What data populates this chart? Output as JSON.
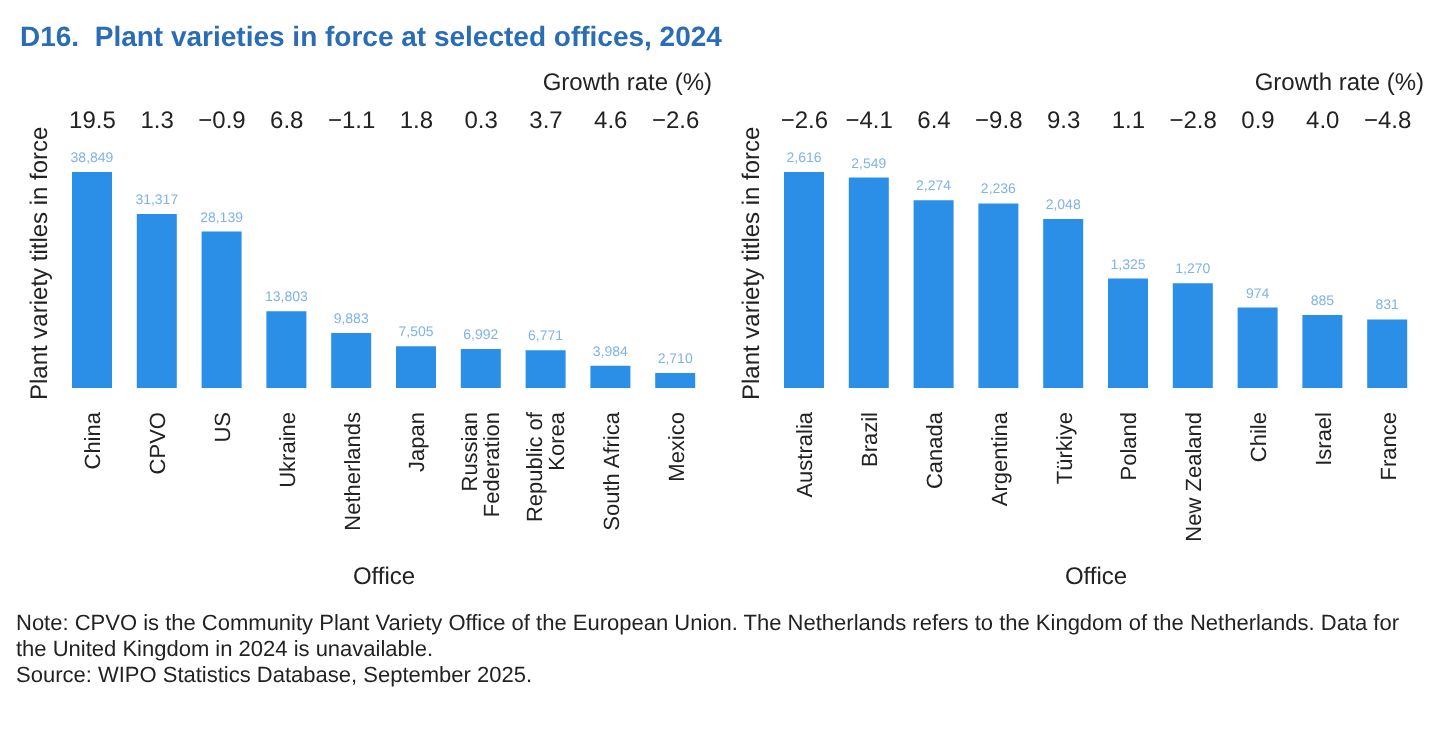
{
  "chart_data": [
    {
      "type": "bar",
      "title": "D16.  Plant varieties in force at selected offices, 2024",
      "xlabel": "Office",
      "ylabel": "Plant variety titles in force",
      "categories": [
        "China",
        "CPVO",
        "US",
        "Ukraine",
        "Netherlands",
        "Japan",
        "Russian Federation",
        "Republic of Korea",
        "South Africa",
        "Mexico"
      ],
      "values": [
        38849,
        31317,
        28139,
        13803,
        9883,
        7505,
        6992,
        6771,
        3984,
        2710
      ],
      "color": "#2b8fe8",
      "value_labels": [
        "38,849",
        "31,317",
        "28,139",
        "13,803",
        "9,883",
        "7,505",
        "6,992",
        "6,771",
        "3,984",
        "2,710"
      ],
      "annotations": [
        "Growth rate (%)",
        "19.5",
        "1.3",
        "−0.9",
        "6.8",
        "−1.1",
        "1.8",
        "0.3",
        "3.7",
        "4.6",
        "−2.6",
        "Note: CPVO is the Community Plant Variety Office of the European Union. The Netherlands refers to the Kingdom of the Netherlands. Data for the United Kingdom in 2024 is unavailable.",
        "Source: WIPO Statistics Database, September 2025."
      ]
    },
    {
      "type": "bar",
      "xlabel": "Office",
      "ylabel": "Plant variety titles in force",
      "categories": [
        "Australia",
        "Brazil",
        "Canada",
        "Argentina",
        "Türkiye",
        "Poland",
        "New Zealand",
        "Chile",
        "Israel",
        "France"
      ],
      "values": [
        2616,
        2549,
        2274,
        2236,
        2048,
        1325,
        1270,
        974,
        885,
        831
      ],
      "color": "#2b8fe8",
      "value_labels": [
        "2,616",
        "2,549",
        "2,274",
        "2,236",
        "2,048",
        "1,325",
        "1,270",
        "974",
        "885",
        "831"
      ],
      "annotations": [
        "Growth rate (%)",
        "−2.6",
        "−4.1",
        "6.4",
        "−9.8",
        "9.3",
        "1.1",
        "−2.8",
        "0.9",
        "4.0",
        "−4.8"
      ]
    }
  ]
}
